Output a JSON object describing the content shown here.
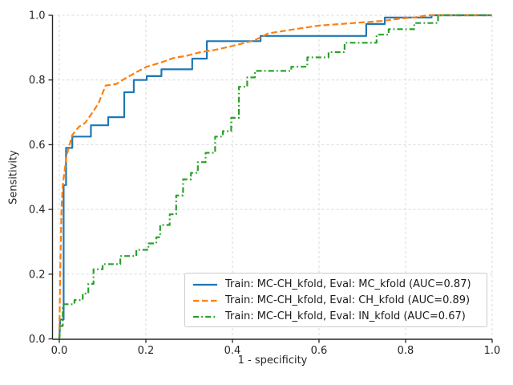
{
  "figure": {
    "background": "#ffffff",
    "grid_color": "#d9d9d9",
    "axis_color": "#262626",
    "tick_label_color": "#262626"
  },
  "chart_data": {
    "type": "line",
    "subtype": "roc-curves",
    "title": "",
    "xlabel": "1 - specificity",
    "ylabel": "Sensitivity",
    "xlim": [
      0.0,
      1.0
    ],
    "ylim": [
      0.0,
      1.0
    ],
    "x_ticks": [
      "0.0",
      "0.2",
      "0.4",
      "0.6",
      "0.8",
      "1.0"
    ],
    "y_ticks": [
      "0.0",
      "0.2",
      "0.4",
      "0.6",
      "0.8",
      "1.0"
    ],
    "x_tick_values": [
      0.0,
      0.2,
      0.4,
      0.6,
      0.8,
      1.0
    ],
    "y_tick_values": [
      0.0,
      0.2,
      0.4,
      0.6,
      0.8,
      1.0
    ],
    "grid": true,
    "legend_position": "lower right",
    "series": [
      {
        "name": "train-mc-ch-eval-mc",
        "label": "Train: MC-CH_kfold, Eval: MC_kfold (AUC=0.87)",
        "auc": 0.87,
        "color": "#1f77b4",
        "style": "solid",
        "points": [
          [
            0,
            0
          ],
          [
            0.002,
            0.06
          ],
          [
            0.01,
            0.06
          ],
          [
            0.01,
            0.475
          ],
          [
            0.0155,
            0.475
          ],
          [
            0.0155,
            0.59
          ],
          [
            0.03,
            0.59
          ],
          [
            0.03,
            0.625
          ],
          [
            0.073,
            0.625
          ],
          [
            0.073,
            0.66
          ],
          [
            0.113,
            0.66
          ],
          [
            0.113,
            0.685
          ],
          [
            0.15,
            0.685
          ],
          [
            0.15,
            0.762
          ],
          [
            0.172,
            0.762
          ],
          [
            0.172,
            0.8
          ],
          [
            0.202,
            0.8
          ],
          [
            0.202,
            0.812
          ],
          [
            0.236,
            0.812
          ],
          [
            0.236,
            0.833
          ],
          [
            0.307,
            0.833
          ],
          [
            0.307,
            0.866
          ],
          [
            0.341,
            0.866
          ],
          [
            0.341,
            0.92
          ],
          [
            0.465,
            0.92
          ],
          [
            0.465,
            0.936
          ],
          [
            0.709,
            0.936
          ],
          [
            0.709,
            0.973
          ],
          [
            0.752,
            0.973
          ],
          [
            0.752,
            0.993
          ],
          [
            0.86,
            0.993
          ],
          [
            0.86,
            1.0
          ],
          [
            1.0,
            1.0
          ]
        ]
      },
      {
        "name": "train-mc-ch-eval-ch",
        "label": "Train: MC-CH_kfold, Eval: CH_kfold (AUC=0.89)",
        "auc": 0.89,
        "color": "#ff7f0e",
        "style": "dashed",
        "points": [
          [
            0,
            0
          ],
          [
            0.002,
            0.2
          ],
          [
            0.005,
            0.4
          ],
          [
            0.008,
            0.475
          ],
          [
            0.017,
            0.568
          ],
          [
            0.03,
            0.63
          ],
          [
            0.045,
            0.655
          ],
          [
            0.06,
            0.668
          ],
          [
            0.079,
            0.704
          ],
          [
            0.091,
            0.729
          ],
          [
            0.107,
            0.783
          ],
          [
            0.131,
            0.787
          ],
          [
            0.15,
            0.803
          ],
          [
            0.178,
            0.824
          ],
          [
            0.202,
            0.841
          ],
          [
            0.233,
            0.853
          ],
          [
            0.264,
            0.868
          ],
          [
            0.295,
            0.875
          ],
          [
            0.326,
            0.886
          ],
          [
            0.36,
            0.893
          ],
          [
            0.4,
            0.905
          ],
          [
            0.45,
            0.922
          ],
          [
            0.483,
            0.944
          ],
          [
            0.52,
            0.952
          ],
          [
            0.56,
            0.96
          ],
          [
            0.6,
            0.968
          ],
          [
            0.65,
            0.973
          ],
          [
            0.7,
            0.978
          ],
          [
            0.75,
            0.983
          ],
          [
            0.79,
            0.99
          ],
          [
            0.82,
            0.993
          ],
          [
            0.85,
            1.0
          ],
          [
            1.0,
            1.0
          ]
        ]
      },
      {
        "name": "train-mc-ch-eval-in",
        "label": "Train: MC-CH_kfold, Eval: IN_kfold (AUC=0.67)",
        "auc": 0.67,
        "color": "#2ca02c",
        "style": "dashdot",
        "points": [
          [
            0,
            0
          ],
          [
            0.002,
            0.04
          ],
          [
            0.008,
            0.04
          ],
          [
            0.008,
            0.095
          ],
          [
            0.01,
            0.107
          ],
          [
            0.035,
            0.107
          ],
          [
            0.035,
            0.12
          ],
          [
            0.054,
            0.12
          ],
          [
            0.054,
            0.14
          ],
          [
            0.067,
            0.14
          ],
          [
            0.067,
            0.17
          ],
          [
            0.079,
            0.17
          ],
          [
            0.079,
            0.215
          ],
          [
            0.1,
            0.215
          ],
          [
            0.1,
            0.231
          ],
          [
            0.141,
            0.231
          ],
          [
            0.141,
            0.256
          ],
          [
            0.178,
            0.256
          ],
          [
            0.178,
            0.275
          ],
          [
            0.206,
            0.275
          ],
          [
            0.206,
            0.295
          ],
          [
            0.224,
            0.295
          ],
          [
            0.224,
            0.314
          ],
          [
            0.233,
            0.314
          ],
          [
            0.233,
            0.352
          ],
          [
            0.255,
            0.352
          ],
          [
            0.255,
            0.385
          ],
          [
            0.27,
            0.385
          ],
          [
            0.27,
            0.443
          ],
          [
            0.286,
            0.443
          ],
          [
            0.286,
            0.493
          ],
          [
            0.304,
            0.493
          ],
          [
            0.304,
            0.513
          ],
          [
            0.32,
            0.513
          ],
          [
            0.32,
            0.546
          ],
          [
            0.338,
            0.546
          ],
          [
            0.338,
            0.575
          ],
          [
            0.36,
            0.575
          ],
          [
            0.36,
            0.625
          ],
          [
            0.378,
            0.625
          ],
          [
            0.378,
            0.642
          ],
          [
            0.397,
            0.642
          ],
          [
            0.397,
            0.683
          ],
          [
            0.415,
            0.683
          ],
          [
            0.415,
            0.779
          ],
          [
            0.434,
            0.779
          ],
          [
            0.434,
            0.808
          ],
          [
            0.452,
            0.808
          ],
          [
            0.452,
            0.828
          ],
          [
            0.536,
            0.828
          ],
          [
            0.536,
            0.841
          ],
          [
            0.573,
            0.841
          ],
          [
            0.573,
            0.87
          ],
          [
            0.622,
            0.87
          ],
          [
            0.622,
            0.886
          ],
          [
            0.659,
            0.886
          ],
          [
            0.659,
            0.915
          ],
          [
            0.733,
            0.915
          ],
          [
            0.733,
            0.94
          ],
          [
            0.761,
            0.94
          ],
          [
            0.761,
            0.957
          ],
          [
            0.82,
            0.957
          ],
          [
            0.82,
            0.976
          ],
          [
            0.875,
            0.976
          ],
          [
            0.875,
            1.0
          ],
          [
            1.0,
            1.0
          ]
        ]
      }
    ]
  }
}
